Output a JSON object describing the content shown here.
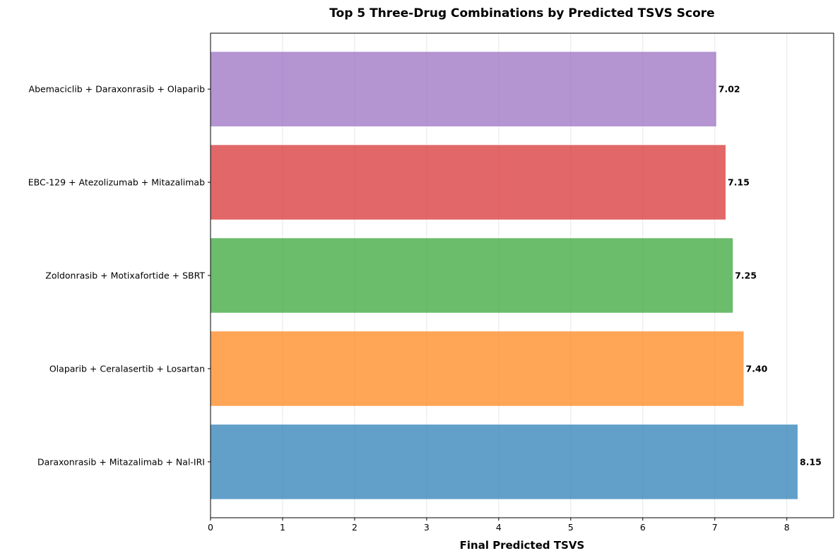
{
  "chart_data": {
    "type": "bar",
    "orientation": "horizontal",
    "title": "Top 5 Three-Drug Combinations by Predicted TSVS Score",
    "xlabel": "Final Predicted TSVS",
    "ylabel": "",
    "xlim": [
      0,
      8.65
    ],
    "xticks": [
      0,
      1,
      2,
      3,
      4,
      5,
      6,
      7,
      8
    ],
    "grid": "x-axis, light",
    "categories": [
      "Daraxonrasib + Mitazalimab + Nal-IRI",
      "Olaparib + Ceralasertib + Losartan",
      "Zoldonrasib + Motixafortide + SBRT",
      "EBC-129 + Atezolizumab + Mitazalimab",
      "Abemaciclib + Daraxonrasib + Olaparib"
    ],
    "values": [
      8.15,
      7.4,
      7.25,
      7.15,
      7.02
    ],
    "value_labels": [
      "8.15",
      "7.40",
      "7.25",
      "7.15",
      "7.02"
    ],
    "colors": [
      "#1f77b4",
      "#ff7f0e",
      "#2ca02c",
      "#d62728",
      "#9467bd"
    ],
    "bar_opacity": 0.7
  }
}
